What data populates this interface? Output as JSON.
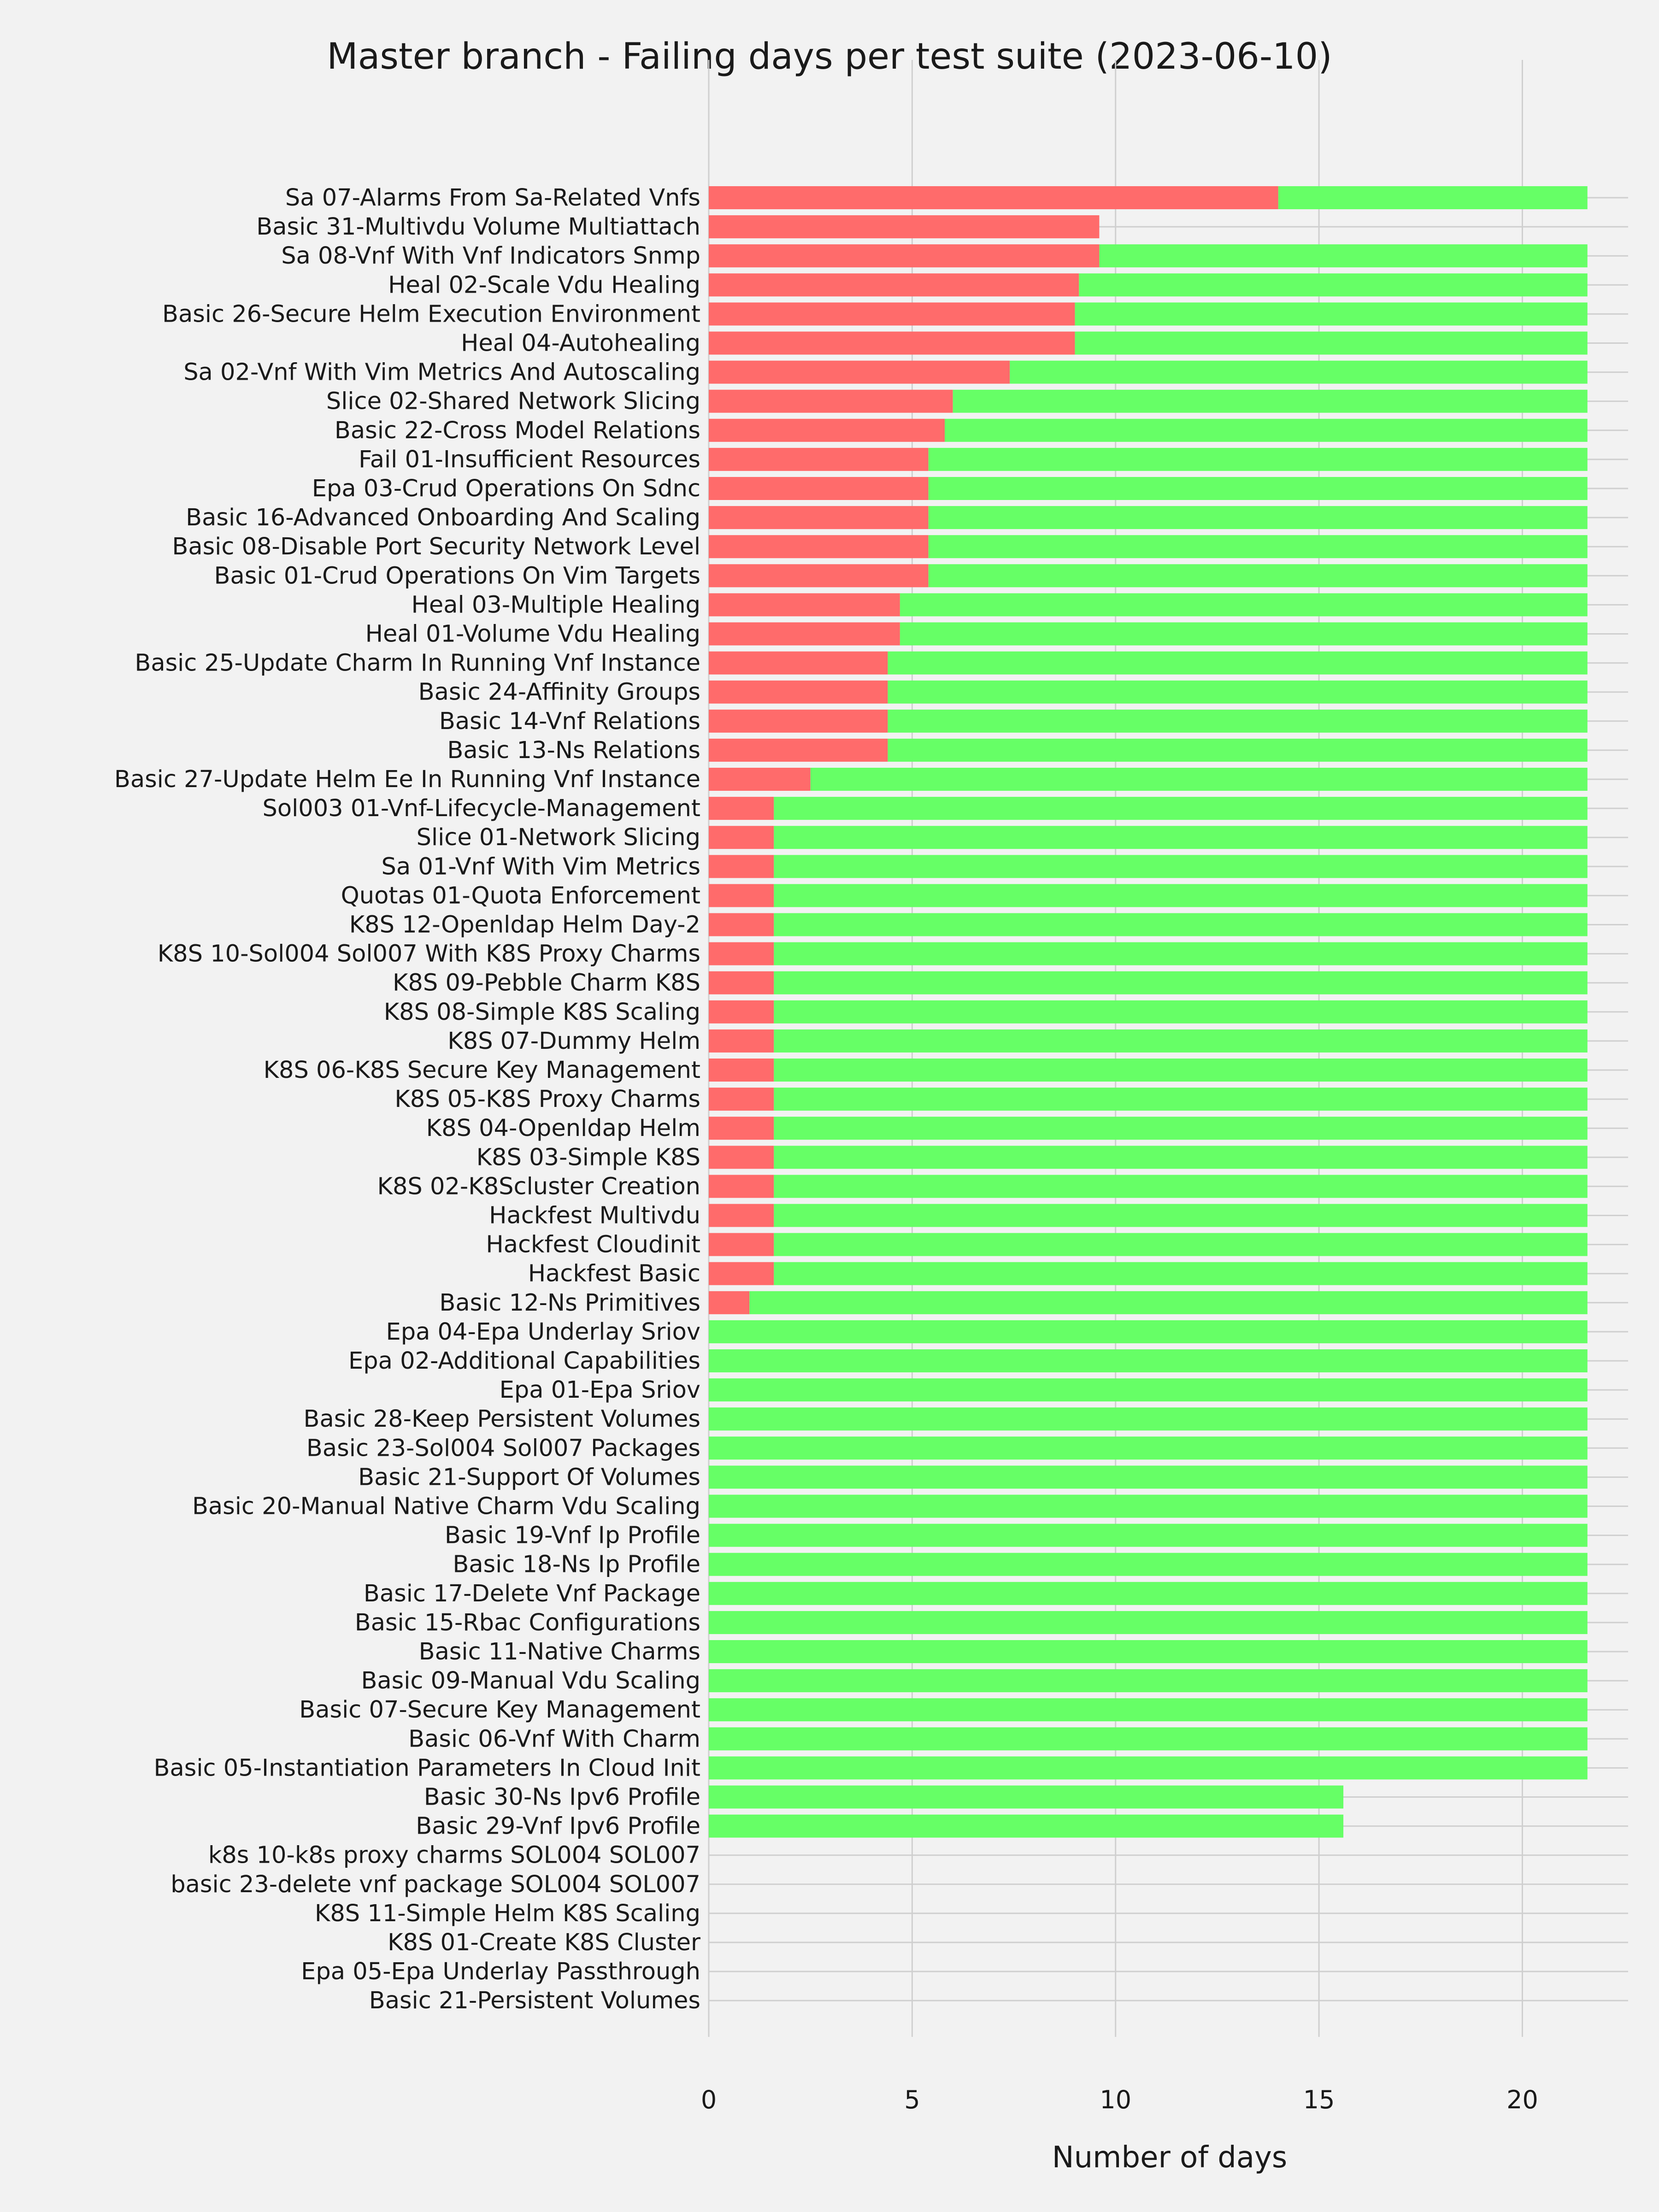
{
  "chart_data": {
    "type": "bar",
    "orientation": "horizontal",
    "stacked": true,
    "title": "Master branch - Failing days per test suite (2023-06-10)",
    "xlabel": "Number of days",
    "ylabel": "",
    "xlim": [
      0,
      22.6
    ],
    "xticks": [
      0,
      5,
      10,
      15,
      20
    ],
    "grid": true,
    "categories": [
      "Sa 07-Alarms From Sa-Related Vnfs",
      "Basic 31-Multivdu Volume Multiattach",
      "Sa 08-Vnf With Vnf Indicators Snmp",
      "Heal 02-Scale Vdu Healing",
      "Basic 26-Secure Helm Execution Environment",
      "Heal 04-Autohealing",
      "Sa 02-Vnf With Vim Metrics And Autoscaling",
      "Slice 02-Shared Network Slicing",
      "Basic 22-Cross Model Relations",
      "Fail 01-Insufficient Resources",
      "Epa 03-Crud Operations On Sdnc",
      "Basic 16-Advanced Onboarding And Scaling",
      "Basic 08-Disable Port Security Network Level",
      "Basic 01-Crud Operations On Vim Targets",
      "Heal 03-Multiple Healing",
      "Heal 01-Volume Vdu Healing",
      "Basic 25-Update Charm In Running Vnf Instance",
      "Basic 24-Affinity Groups",
      "Basic 14-Vnf Relations",
      "Basic 13-Ns Relations",
      "Basic 27-Update Helm Ee In Running Vnf Instance",
      "Sol003 01-Vnf-Lifecycle-Management",
      "Slice 01-Network Slicing",
      "Sa 01-Vnf With Vim Metrics",
      "Quotas 01-Quota Enforcement",
      "K8S 12-Openldap Helm Day-2",
      "K8S 10-Sol004 Sol007 With K8S Proxy Charms",
      "K8S 09-Pebble Charm K8S",
      "K8S 08-Simple K8S Scaling",
      "K8S 07-Dummy Helm",
      "K8S 06-K8S Secure Key Management",
      "K8S 05-K8S Proxy Charms",
      "K8S 04-Openldap Helm",
      "K8S 03-Simple K8S",
      "K8S 02-K8Scluster Creation",
      "Hackfest Multivdu",
      "Hackfest Cloudinit",
      "Hackfest Basic",
      "Basic 12-Ns Primitives",
      "Epa 04-Epa Underlay Sriov",
      "Epa 02-Additional Capabilities",
      "Epa 01-Epa Sriov",
      "Basic 28-Keep Persistent Volumes",
      "Basic 23-Sol004 Sol007 Packages",
      "Basic 21-Support Of Volumes",
      "Basic 20-Manual Native Charm Vdu Scaling",
      "Basic 19-Vnf Ip Profile",
      "Basic 18-Ns Ip Profile",
      "Basic 17-Delete Vnf Package",
      "Basic 15-Rbac Configurations",
      "Basic 11-Native Charms",
      "Basic 09-Manual Vdu Scaling",
      "Basic 07-Secure Key Management",
      "Basic 06-Vnf With Charm",
      "Basic 05-Instantiation Parameters In Cloud Init",
      "Basic 30-Ns Ipv6 Profile",
      "Basic 29-Vnf Ipv6 Profile",
      "k8s 10-k8s proxy charms SOL004 SOL007",
      "basic 23-delete vnf package SOL004 SOL007",
      "K8S 11-Simple Helm K8S Scaling",
      "K8S 01-Create K8S Cluster",
      "Epa 05-Epa Underlay Passthrough",
      "Basic 21-Persistent Volumes"
    ],
    "series": [
      {
        "name": "",
        "color": "#ff6b6b",
        "values": [
          14.0,
          9.6,
          9.6,
          9.1,
          9.0,
          9.0,
          7.4,
          6.0,
          5.8,
          5.4,
          5.4,
          5.4,
          5.4,
          5.4,
          4.7,
          4.7,
          4.4,
          4.4,
          4.4,
          4.4,
          2.5,
          1.6,
          1.6,
          1.6,
          1.6,
          1.6,
          1.6,
          1.6,
          1.6,
          1.6,
          1.6,
          1.6,
          1.6,
          1.6,
          1.6,
          1.6,
          1.6,
          1.6,
          1.0,
          0,
          0,
          0,
          0,
          0,
          0,
          0,
          0,
          0,
          0,
          0,
          0,
          0,
          0,
          0,
          0,
          0,
          0,
          0,
          0,
          0,
          0,
          0,
          0
        ]
      },
      {
        "name": "",
        "color": "#66ff66",
        "values": [
          7.6,
          0,
          12.0,
          12.5,
          12.6,
          12.6,
          14.2,
          15.6,
          15.8,
          16.2,
          16.2,
          16.2,
          16.2,
          16.2,
          16.9,
          16.9,
          17.2,
          17.2,
          17.2,
          17.2,
          19.1,
          20.0,
          20.0,
          20.0,
          20.0,
          20.0,
          20.0,
          20.0,
          20.0,
          20.0,
          20.0,
          20.0,
          20.0,
          20.0,
          20.0,
          20.0,
          20.0,
          20.0,
          20.6,
          21.6,
          21.6,
          21.6,
          21.6,
          21.6,
          21.6,
          21.6,
          21.6,
          21.6,
          21.6,
          21.6,
          21.6,
          21.6,
          21.6,
          21.6,
          21.6,
          15.6,
          15.6,
          0,
          0,
          0,
          0,
          0,
          0
        ]
      }
    ]
  }
}
